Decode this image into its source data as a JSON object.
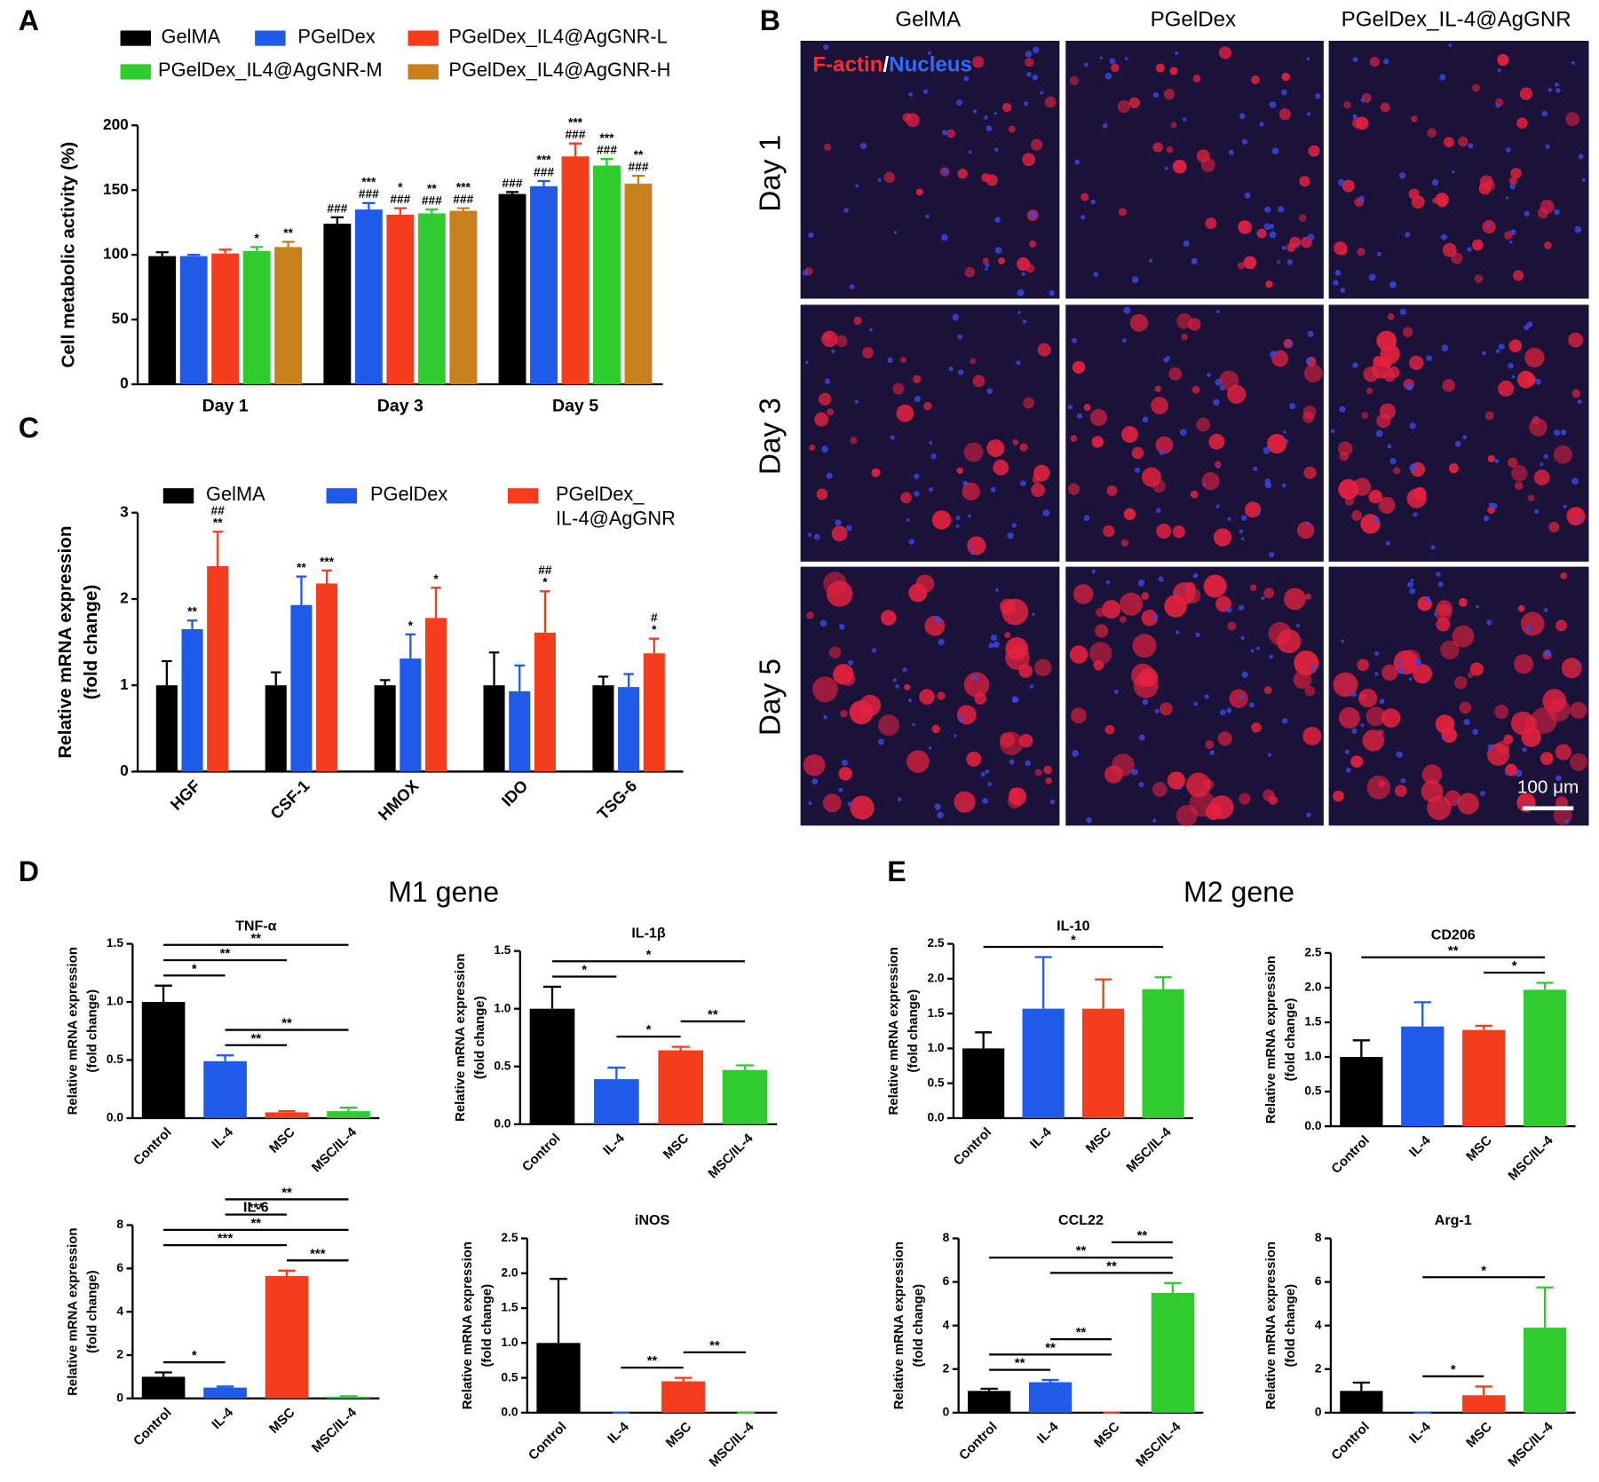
{
  "panel_labels": [
    "A",
    "B",
    "C",
    "D",
    "E"
  ],
  "group_titles": [
    "M1 gene",
    "M2 gene"
  ],
  "image_panel": {
    "columns": [
      "GelMA",
      "PGelDex",
      "PGelDex_IL-4@AgGNR"
    ],
    "rows": [
      "Day 1",
      "Day 3",
      "Day 5"
    ],
    "stain": [
      "F-actin",
      "/",
      "Nucleus"
    ],
    "scale_bar": "100 μm"
  },
  "chart_data": [
    {
      "type": "bar",
      "ylabel": "Cell metabolic activity (%)",
      "categories": [
        "Day 1",
        "Day 3",
        "Day 5"
      ],
      "ylim": [
        0,
        200
      ],
      "yticks": [
        0,
        50,
        100,
        150,
        200
      ],
      "series": [
        {
          "name": "GelMA",
          "color": "#000000",
          "values": [
            99,
            124,
            147
          ],
          "errors": [
            3,
            5,
            1.5
          ],
          "significance": [
            null,
            [
              "###"
            ],
            [
              "###"
            ]
          ]
        },
        {
          "name": "PGelDex",
          "color": "#1f5be8",
          "values": [
            99,
            135,
            153
          ],
          "errors": [
            1,
            5,
            4
          ],
          "significance": [
            null,
            [
              "***",
              "###"
            ],
            [
              "***",
              "###"
            ]
          ]
        },
        {
          "name": "PGelDex_IL4@AgGNR-L",
          "color": "#f53c1c",
          "values": [
            101,
            131,
            176
          ],
          "errors": [
            3,
            5,
            10
          ],
          "significance": [
            null,
            [
              "*",
              "###"
            ],
            [
              "***",
              "###"
            ]
          ]
        },
        {
          "name": "PGelDex_IL4@AgGNR-M",
          "color": "#2fcb2f",
          "values": [
            103,
            132,
            169
          ],
          "errors": [
            3,
            3,
            5
          ],
          "significance": [
            [
              "*"
            ],
            [
              "**",
              "###"
            ],
            [
              "***",
              "###"
            ]
          ]
        },
        {
          "name": "PGelDex_IL4@AgGNR-H",
          "color": "#c8801e",
          "values": [
            106,
            134,
            155
          ],
          "errors": [
            4,
            2,
            6
          ],
          "significance": [
            [
              "**"
            ],
            [
              "***",
              "###"
            ],
            [
              "**",
              "###"
            ]
          ]
        }
      ]
    },
    {
      "type": "bar",
      "ylabel": [
        "Relative mRNA expression",
        "(fold change)"
      ],
      "categories": [
        "HGF",
        "CSF-1",
        "HMOX",
        "IDO",
        "TSG-6"
      ],
      "ylim": [
        0,
        3
      ],
      "yticks": [
        0,
        1,
        2,
        3
      ],
      "series": [
        {
          "name": [
            "GelMA"
          ],
          "color": "#000000",
          "values": [
            1.0,
            1.0,
            1.0,
            1.0,
            1.0
          ],
          "errors": [
            0.28,
            0.15,
            0.06,
            0.38,
            0.1
          ],
          "significance": [
            null,
            null,
            null,
            null,
            null
          ]
        },
        {
          "name": [
            "PGelDex"
          ],
          "color": "#1f5be8",
          "values": [
            1.65,
            1.93,
            1.31,
            0.93,
            0.98
          ],
          "errors": [
            0.1,
            0.33,
            0.28,
            0.3,
            0.15
          ],
          "significance": [
            [
              "**"
            ],
            [
              "**"
            ],
            [
              "*"
            ],
            null,
            null
          ]
        },
        {
          "name": [
            "PGelDex_",
            "IL-4@AgGNR"
          ],
          "color": "#f53c1c",
          "values": [
            2.38,
            2.18,
            1.78,
            1.61,
            1.37
          ],
          "errors": [
            0.4,
            0.15,
            0.35,
            0.48,
            0.17
          ],
          "significance": [
            [
              "##",
              "**"
            ],
            [
              "***"
            ],
            [
              "*"
            ],
            [
              "##",
              "*"
            ],
            [
              "#",
              "*"
            ]
          ]
        }
      ]
    },
    {
      "type": "bar",
      "title": "TNF-α",
      "ylabel": [
        "Relative mRNA expression",
        "(fold change)"
      ],
      "categories": [
        "Control",
        "IL-4",
        "MSC",
        "MSC/IL-4"
      ],
      "values": [
        1.0,
        0.49,
        0.05,
        0.06
      ],
      "errors": [
        0.14,
        0.05,
        0.01,
        0.03
      ],
      "colors": [
        "#000000",
        "#1f5be8",
        "#f53c1c",
        "#2fcb2f"
      ],
      "ylim": [
        0,
        1.5
      ],
      "yticks": [
        {
          "value": 0,
          "label": "0.0"
        },
        0.5,
        {
          "value": 1,
          "label": "1.0"
        },
        1.5
      ],
      "comparisons": [
        {
          "from": "IL-4",
          "to": "MSC",
          "label": "**"
        },
        {
          "from": "IL-4",
          "to": "MSC/IL-4",
          "label": "**"
        },
        {
          "from": "Control",
          "to": "IL-4",
          "label": "*"
        },
        {
          "from": "Control",
          "to": "MSC",
          "label": "**"
        },
        {
          "from": "Control",
          "to": "MSC/IL-4",
          "label": "**"
        }
      ]
    },
    {
      "type": "bar",
      "title": "IL-1β",
      "ylabel": [
        "Relative mRNA expression",
        "(fold change)"
      ],
      "categories": [
        "Control",
        "IL-4",
        "MSC",
        "MSC/IL-4"
      ],
      "values": [
        1.0,
        0.39,
        0.64,
        0.47
      ],
      "errors": [
        0.19,
        0.1,
        0.03,
        0.04
      ],
      "colors": [
        "#000000",
        "#1f5be8",
        "#f53c1c",
        "#2fcb2f"
      ],
      "ylim": [
        0,
        1.5
      ],
      "yticks": [
        {
          "value": 0,
          "label": "0.0"
        },
        0.5,
        {
          "value": 1,
          "label": "1.0"
        },
        1.5
      ],
      "comparisons": [
        {
          "from": "IL-4",
          "to": "MSC",
          "label": "*"
        },
        {
          "from": "MSC",
          "to": "MSC/IL-4",
          "label": "**"
        },
        {
          "from": "Control",
          "to": "IL-4",
          "label": "*"
        },
        {
          "from": "Control",
          "to": "MSC/IL-4",
          "label": "*"
        }
      ]
    },
    {
      "type": "bar",
      "title": "IL-6",
      "ylabel": [
        "Relative mRNA expression",
        "(fold change)"
      ],
      "categories": [
        "Control",
        "IL-4",
        "MSC",
        "MSC/IL-4"
      ],
      "values": [
        1.0,
        0.5,
        5.65,
        0.08
      ],
      "errors": [
        0.2,
        0.05,
        0.25,
        0.02
      ],
      "colors": [
        "#000000",
        "#1f5be8",
        "#f53c1c",
        "#2fcb2f"
      ],
      "ylim": [
        0,
        8
      ],
      "yticks": [
        0,
        2,
        4,
        6,
        8
      ],
      "comparisons": [
        {
          "from": "Control",
          "to": "IL-4",
          "label": "*"
        },
        {
          "from": "MSC",
          "to": "MSC/IL-4",
          "label": "***"
        },
        {
          "from": "Control",
          "to": "MSC",
          "label": "***"
        },
        {
          "from": "Control",
          "to": "MSC/IL-4",
          "label": "**"
        },
        {
          "from": "IL-4",
          "to": "MSC",
          "label": "***"
        },
        {
          "from": "IL-4",
          "to": "MSC/IL-4",
          "label": "**"
        }
      ]
    },
    {
      "type": "bar",
      "title": "iNOS",
      "ylabel": [
        "Relative mRNA expression",
        "(fold change)"
      ],
      "categories": [
        "Control",
        "IL-4",
        "MSC",
        "MSC/IL-4"
      ],
      "values": [
        1.0,
        0,
        0.45,
        0
      ],
      "errors": [
        0.92,
        0,
        0.05,
        0
      ],
      "colors": [
        "#000000",
        "#1f5be8",
        "#f53c1c",
        "#2fcb2f"
      ],
      "ylim": [
        0,
        2.5
      ],
      "yticks": [
        {
          "value": 0,
          "label": "0.0"
        },
        0.5,
        {
          "value": 1,
          "label": "1.0"
        },
        1.5,
        {
          "value": 2,
          "label": "2.0"
        },
        2.5
      ],
      "comparisons": [
        {
          "from": "IL-4",
          "to": "MSC",
          "label": "**"
        },
        {
          "from": "MSC",
          "to": "MSC/IL-4",
          "label": "**"
        }
      ]
    },
    {
      "type": "bar",
      "title": "IL-10",
      "ylabel": [
        "Relative mRNA expression",
        "(fold change)"
      ],
      "categories": [
        "Control",
        "IL-4",
        "MSC",
        "MSC/IL-4"
      ],
      "values": [
        1.0,
        1.57,
        1.57,
        1.85
      ],
      "errors": [
        0.23,
        0.74,
        0.42,
        0.17
      ],
      "colors": [
        "#000000",
        "#1f5be8",
        "#f53c1c",
        "#2fcb2f"
      ],
      "ylim": [
        0,
        2.5
      ],
      "yticks": [
        {
          "value": 0,
          "label": "0.0"
        },
        0.5,
        {
          "value": 1,
          "label": "1.0"
        },
        1.5,
        {
          "value": 2,
          "label": "2.0"
        },
        2.5
      ],
      "comparisons": [
        {
          "from": "Control",
          "to": "MSC/IL-4",
          "label": "*"
        }
      ]
    },
    {
      "type": "bar",
      "title": "CD206",
      "ylabel": [
        "Relative mRNA expression",
        "(fold change)"
      ],
      "categories": [
        "Control",
        "IL-4",
        "MSC",
        "MSC/IL-4"
      ],
      "values": [
        1.0,
        1.44,
        1.39,
        1.97
      ],
      "errors": [
        0.24,
        0.35,
        0.06,
        0.1
      ],
      "colors": [
        "#000000",
        "#1f5be8",
        "#f53c1c",
        "#2fcb2f"
      ],
      "ylim": [
        0,
        2.5
      ],
      "yticks": [
        {
          "value": 0,
          "label": "0.0"
        },
        0.5,
        {
          "value": 1,
          "label": "1.0"
        },
        1.5,
        {
          "value": 2,
          "label": "2.0"
        },
        2.5
      ],
      "comparisons": [
        {
          "from": "MSC",
          "to": "MSC/IL-4",
          "label": "*"
        },
        {
          "from": "Control",
          "to": "MSC/IL-4",
          "label": "**"
        }
      ]
    },
    {
      "type": "bar",
      "title": "CCL22",
      "ylabel": [
        "Relative mRNA expression",
        "(fold change)"
      ],
      "categories": [
        "Control",
        "IL-4",
        "MSC",
        "MSC/IL-4"
      ],
      "values": [
        1.0,
        1.4,
        0,
        5.5
      ],
      "errors": [
        0.1,
        0.1,
        0,
        0.45
      ],
      "colors": [
        "#000000",
        "#1f5be8",
        "#f53c1c",
        "#2fcb2f"
      ],
      "ylim": [
        0,
        8
      ],
      "yticks": [
        0,
        2,
        4,
        6,
        8
      ],
      "comparisons": [
        {
          "from": "Control",
          "to": "IL-4",
          "label": "**"
        },
        {
          "from": "Control",
          "to": "MSC",
          "label": "**"
        },
        {
          "from": "IL-4",
          "to": "MSC",
          "label": "**"
        },
        {
          "from": "IL-4",
          "to": "MSC/IL-4",
          "label": "**"
        },
        {
          "from": "Control",
          "to": "MSC/IL-4",
          "label": "**"
        },
        {
          "from": "MSC",
          "to": "MSC/IL-4",
          "label": "**"
        }
      ]
    },
    {
      "type": "bar",
      "title": "Arg-1",
      "ylabel": [
        "Relative mRNA expression",
        "(fold change)"
      ],
      "categories": [
        "Control",
        "IL-4",
        "MSC",
        "MSC/IL-4"
      ],
      "values": [
        1.0,
        0,
        0.8,
        3.9
      ],
      "errors": [
        0.38,
        0,
        0.4,
        1.85
      ],
      "colors": [
        "#000000",
        "#1f5be8",
        "#f53c1c",
        "#2fcb2f"
      ],
      "ylim": [
        0,
        8
      ],
      "yticks": [
        0,
        2,
        4,
        6,
        8
      ],
      "comparisons": [
        {
          "from": "IL-4",
          "to": "MSC",
          "label": "*"
        },
        {
          "from": "IL-4",
          "to": "MSC/IL-4",
          "label": "*"
        }
      ]
    }
  ]
}
